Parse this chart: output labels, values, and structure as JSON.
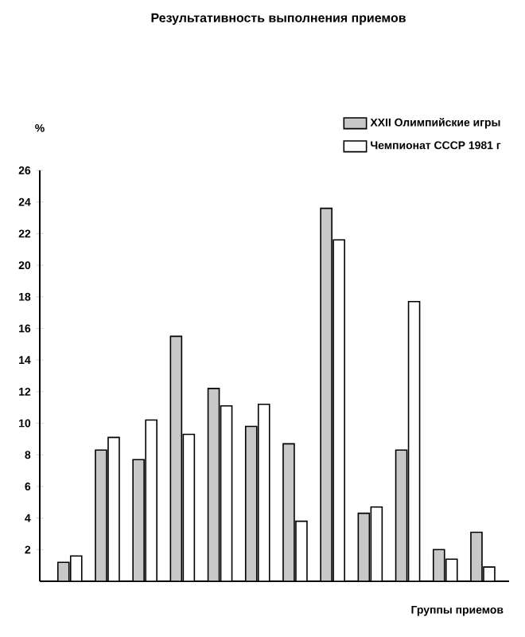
{
  "chart_data": {
    "type": "bar",
    "title": "Результативность выполнения приемов",
    "xlabel": "Группы приемов",
    "ylabel": "%",
    "categories": [
      null,
      null,
      null,
      null,
      null,
      null,
      null,
      null,
      null,
      null,
      null,
      null
    ],
    "series": [
      {
        "name": "XXII Олимпийские игры",
        "color": "#c8c8c8",
        "values": [
          1.2,
          8.3,
          7.7,
          15.5,
          12.2,
          9.8,
          8.7,
          23.6,
          4.3,
          8.3,
          2.0,
          3.1
        ]
      },
      {
        "name": "Чемпионат СССР 1981 г",
        "color": "#ffffff",
        "values": [
          1.6,
          9.1,
          10.2,
          9.3,
          11.1,
          11.2,
          3.8,
          21.6,
          4.7,
          17.7,
          1.4,
          0.9
        ]
      }
    ],
    "ylim": [
      0,
      26
    ],
    "yticks": [
      2,
      4,
      6,
      8,
      10,
      12,
      14,
      16,
      18,
      20,
      22,
      24,
      26
    ],
    "grid": false,
    "legend": "top right",
    "tick_labels": "y"
  }
}
